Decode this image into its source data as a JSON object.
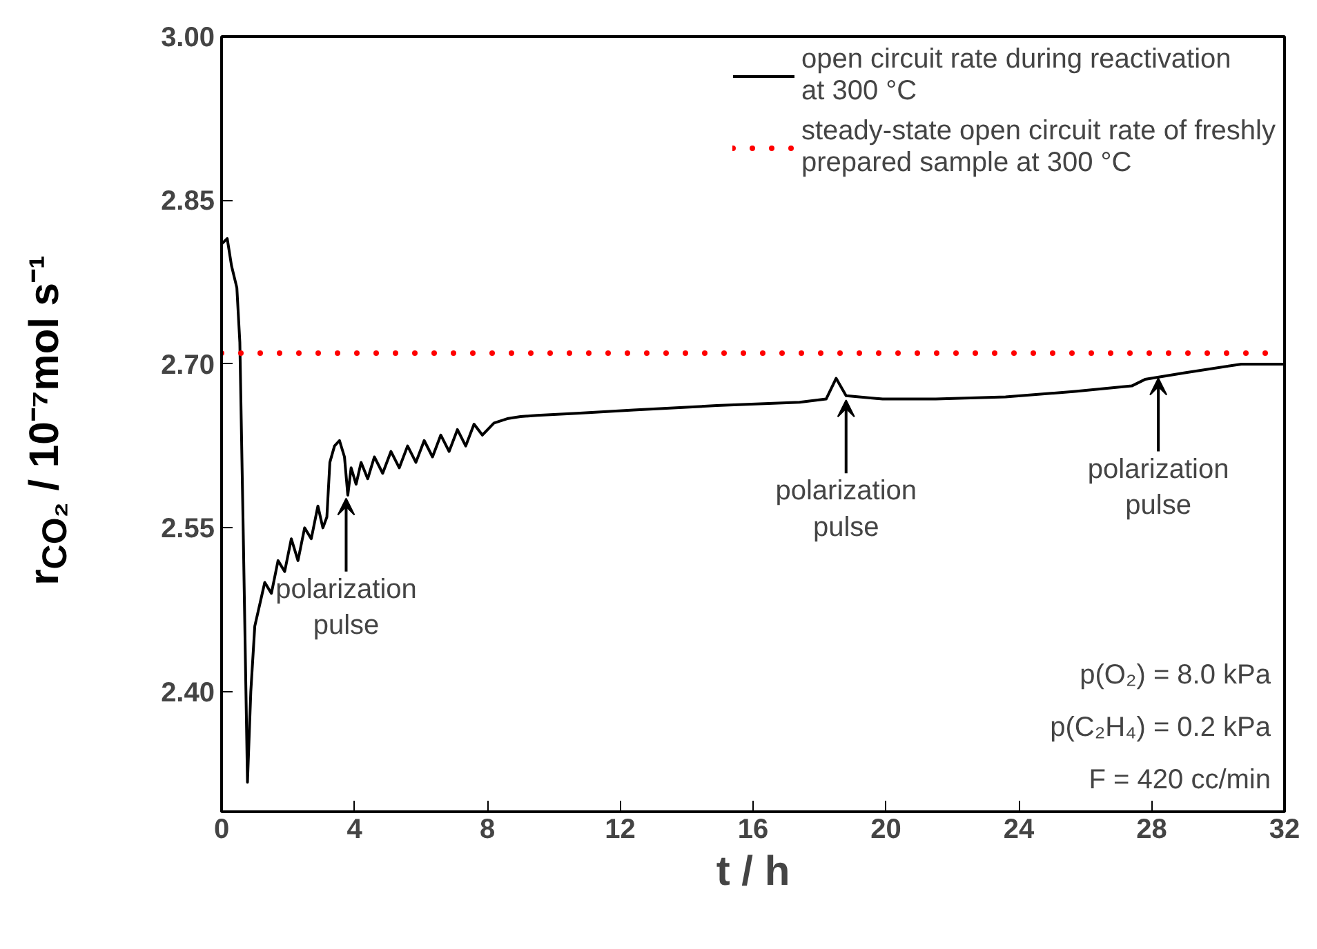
{
  "chart_data": {
    "type": "line",
    "xlabel": "t / h",
    "ylabel": "r$_{CO₂}$ / 10⁻⁷mol s⁻¹",
    "x": [
      0,
      0.17,
      0.3,
      0.46,
      0.55,
      0.65,
      0.78,
      0.88,
      1.0,
      1.15,
      1.3,
      1.5,
      1.7,
      1.9,
      2.1,
      2.3,
      2.5,
      2.7,
      2.9,
      3.05,
      3.17,
      3.26,
      3.4,
      3.55,
      3.7,
      3.8,
      3.9,
      4.05,
      4.2,
      4.4,
      4.6,
      4.85,
      5.1,
      5.35,
      5.6,
      5.85,
      6.1,
      6.35,
      6.6,
      6.85,
      7.1,
      7.35,
      7.6,
      7.85,
      8.2,
      8.6,
      9.0,
      9.5,
      10.7,
      12.4,
      14.9,
      17.4,
      18.2,
      18.5,
      18.8,
      19.9,
      21.5,
      23.6,
      25.7,
      27.4,
      27.8,
      29.0,
      30.7,
      32.0
    ],
    "series": [
      {
        "name": "open circuit rate during reactivation\nat 300 °C",
        "color": "#000000",
        "values": [
          2.81,
          2.815,
          2.79,
          2.77,
          2.72,
          2.55,
          2.317,
          2.4,
          2.46,
          2.48,
          2.5,
          2.49,
          2.52,
          2.51,
          2.54,
          2.52,
          2.55,
          2.54,
          2.57,
          2.55,
          2.56,
          2.61,
          2.625,
          2.63,
          2.615,
          2.58,
          2.605,
          2.59,
          2.61,
          2.595,
          2.615,
          2.6,
          2.62,
          2.605,
          2.625,
          2.61,
          2.63,
          2.615,
          2.635,
          2.62,
          2.64,
          2.625,
          2.645,
          2.635,
          2.646,
          2.65,
          2.652,
          2.653,
          2.655,
          2.658,
          2.662,
          2.665,
          2.668,
          2.687,
          2.671,
          2.668,
          2.668,
          2.67,
          2.675,
          2.68,
          2.686,
          2.692,
          2.7,
          2.7
        ]
      }
    ],
    "ref_lines": [
      {
        "axis": "y",
        "value": 2.71,
        "label": "steady-state open circuit rate of freshly\nprepared sample at 300 °C",
        "color": "#ff0000",
        "line_style": "dotted"
      }
    ],
    "annotations": [
      {
        "text": "polarization\npulse",
        "x": 3.75,
        "y": 2.58
      },
      {
        "text": "polarization\npulse",
        "x": 18.8,
        "y": 2.67
      },
      {
        "text": "polarization\npulse",
        "x": 28.2,
        "y": 2.69
      },
      "p(O₂) = 8.0 kPa",
      "p(C₂H₄) = 0.2 kPa",
      "F = 420 cc/min"
    ],
    "xlim": [
      0,
      32
    ],
    "xticks": [
      0,
      4,
      8,
      12,
      16,
      20,
      24,
      28,
      32
    ],
    "ylim": [
      2.29,
      3.0
    ],
    "yticks": [
      {
        "value": 2.4,
        "label": "2.40"
      },
      {
        "value": 2.55,
        "label": "2.55"
      },
      {
        "value": 2.7,
        "label": "2.70"
      },
      {
        "value": 2.85,
        "label": "2.85"
      },
      {
        "value": 3.0,
        "label": "3.00"
      }
    ],
    "legend": "top right",
    "grid": false,
    "marker": "none",
    "line_style": "solid"
  }
}
